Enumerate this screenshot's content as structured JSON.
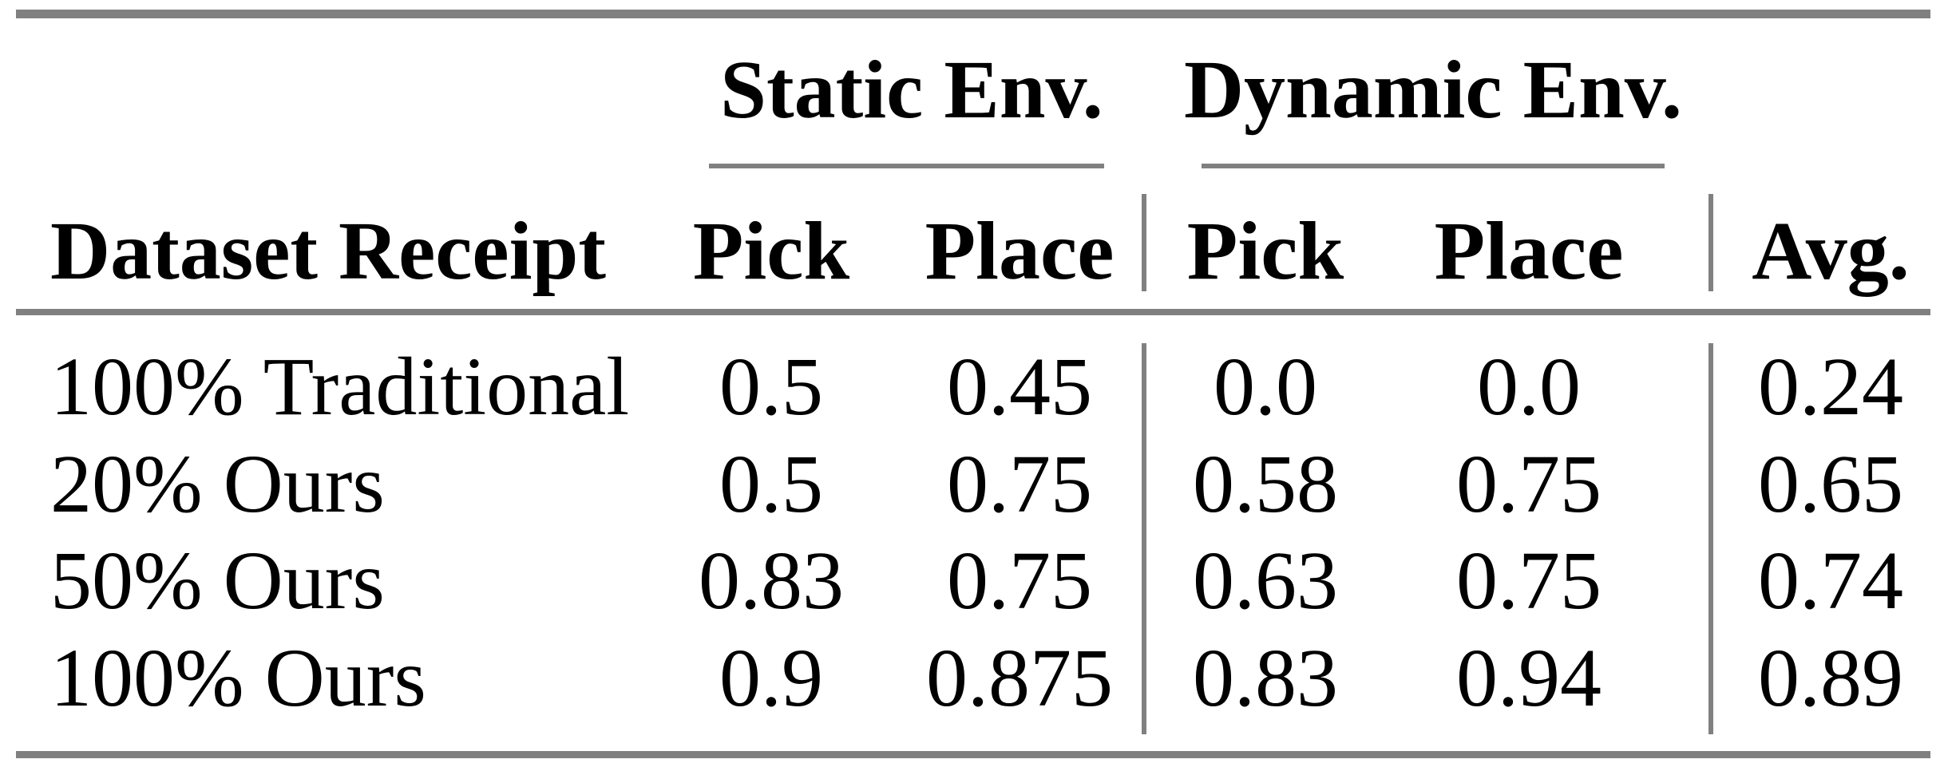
{
  "table": {
    "col_groups": [
      {
        "label": "Static Env."
      },
      {
        "label": "Dynamic Env."
      }
    ],
    "headers": {
      "row_label": "Dataset Receipt",
      "static_pick": "Pick",
      "static_place": "Place",
      "dynamic_pick": "Pick",
      "dynamic_place": "Place",
      "avg": "Avg."
    },
    "rows": [
      {
        "label": "100% Traditional",
        "values": [
          "0.5",
          "0.45",
          "0.0",
          "0.0",
          "0.24"
        ]
      },
      {
        "label": "20% Ours",
        "values": [
          "0.5",
          "0.75",
          "0.58",
          "0.75",
          "0.65"
        ]
      },
      {
        "label": "50% Ours",
        "values": [
          "0.83",
          "0.75",
          "0.63",
          "0.75",
          "0.74"
        ]
      },
      {
        "label": "100% Ours",
        "values": [
          "0.9",
          "0.875",
          "0.83",
          "0.94",
          "0.89"
        ]
      }
    ]
  },
  "colors": {
    "rule_gray": "#808080",
    "text": "#000000",
    "background": "#ffffff"
  },
  "chart_data": {
    "type": "table",
    "title": "",
    "column_groups": [
      "Static Env.",
      "Dynamic Env."
    ],
    "columns": [
      "Dataset Receipt",
      "Static Env. Pick",
      "Static Env. Place",
      "Dynamic Env. Pick",
      "Dynamic Env. Place",
      "Avg."
    ],
    "rows": [
      [
        "100% Traditional",
        0.5,
        0.45,
        0.0,
        0.0,
        0.24
      ],
      [
        "20% Ours",
        0.5,
        0.75,
        0.58,
        0.75,
        0.65
      ],
      [
        "50% Ours",
        0.83,
        0.75,
        0.63,
        0.75,
        0.74
      ],
      [
        "100% Ours",
        0.9,
        0.875,
        0.83,
        0.94,
        0.89
      ]
    ]
  }
}
